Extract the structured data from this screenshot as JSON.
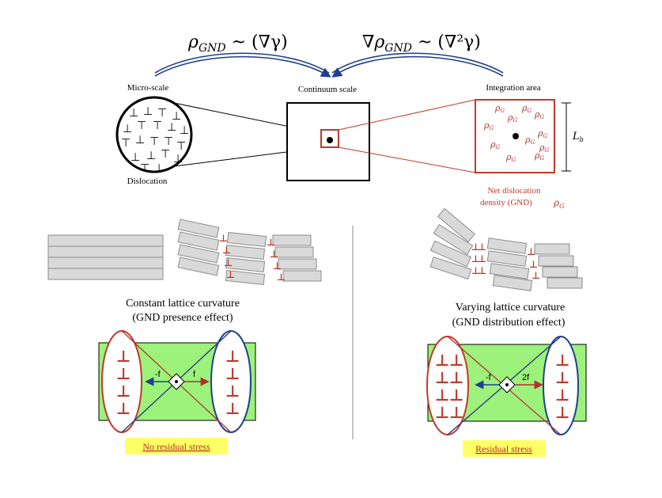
{
  "header": {
    "left_formula": "ρGND ~ (∇γ)",
    "left_formula_main": "ρ",
    "left_formula_sub": "GND",
    "left_formula_rest": " ~ (∇γ)",
    "right_formula_main": "∇ρ",
    "right_formula_sub": "GND",
    "right_formula_rest": " ~ (∇²γ)"
  },
  "scales": {
    "micro_label": "Micro-scale",
    "continuum_label": "Continuum scale",
    "integration_label": "Integration area",
    "dislocation_label": "Dislocation",
    "length_label": "Lb",
    "length_main": "L",
    "length_sub": "b",
    "net_density_line1": "Net dislocation",
    "net_density_line2": "density (GND)",
    "rho_symbol": "ρ",
    "rho_sub": "G",
    "dislocation_symbol": "⊥",
    "rho_g_label": "ρG"
  },
  "left_panel": {
    "title_line1": "Constant lattice curvature",
    "title_line2": "(GND presence effect)",
    "force_left": "-f",
    "force_right": "f",
    "stress_label": "No residual stress"
  },
  "right_panel": {
    "title_line1": "Varying lattice curvature",
    "title_line2": "(GND distribution effect)",
    "force_left": "-f",
    "force_right": "2f",
    "stress_label": "Residual stress"
  },
  "colors": {
    "red": "#c0392b",
    "dark_red": "#b03030",
    "navy": "#1f3f8f",
    "green": "#9cf27a",
    "yellow": "#ffff66",
    "stress_text": "#c0282d",
    "block_fill": "#d9d9d9",
    "block_stroke": "#8c8c8c"
  }
}
